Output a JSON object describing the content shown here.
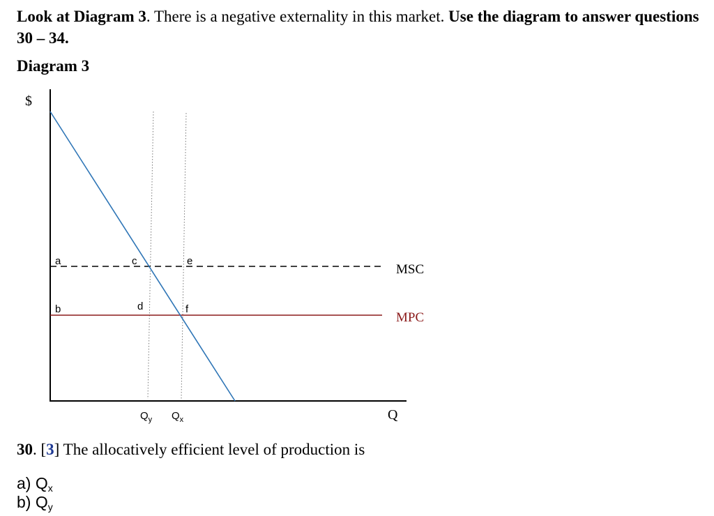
{
  "intro": {
    "part1": "Look at Diagram 3",
    "part2": ". There is a negative externality in this market. ",
    "part3": "Use the diagram to answer questions 30 – 34."
  },
  "diagram_title": "Diagram 3",
  "diagram": {
    "y_axis_label": "$",
    "x_axis_label": "Q",
    "point_labels": {
      "a": "a",
      "b": "b",
      "c": "c",
      "d": "d",
      "e": "e",
      "f": "f"
    },
    "qy_label": {
      "main": "Q",
      "sub": "y"
    },
    "qx_label": {
      "main": "Q",
      "sub": "x"
    },
    "msc_label": "MSC",
    "mpc_label": "MPC",
    "colors": {
      "demand": "#2e75b6",
      "mpc": "#8b1a1a",
      "msc": "#000000"
    }
  },
  "question": {
    "number": "30",
    "points_open": ". [",
    "points": "3",
    "points_close": "]",
    "text": " The allocatively efficient level of production is"
  },
  "options": {
    "a_prefix": "a) Q",
    "a_sub": "x",
    "b_prefix": "b) Q",
    "b_sub": "y"
  }
}
